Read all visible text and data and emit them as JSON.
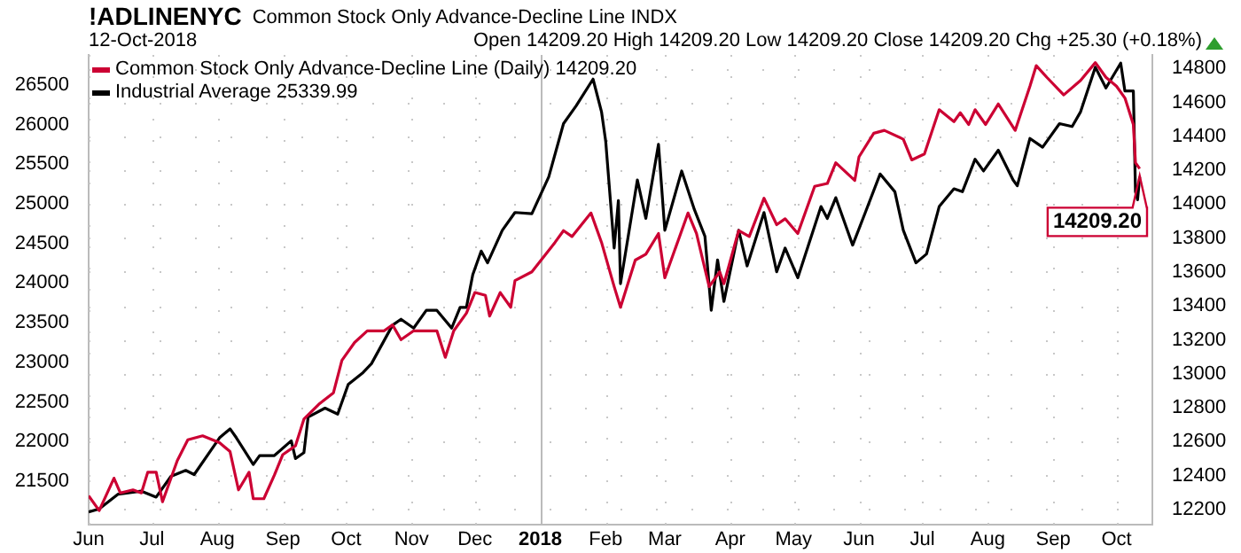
{
  "chart_data": {
    "type": "line",
    "title": "!ADLINENYC",
    "subtitle": "Common Stock Only Advance-Decline Line INDX",
    "annotations": [
      "12-Oct-2018",
      "Open 14209.20  High 14209.20  Low 14209.20  Close 14209.20  Chg +25.30 (+0.18%)",
      "14209.20"
    ],
    "xlim": [
      "2017-06-01",
      "2018-10-18"
    ],
    "xticks": [
      {
        "value": "2017-06-01",
        "label": "Jun"
      },
      {
        "value": "2017-07-01",
        "label": "Jul"
      },
      {
        "value": "2017-08-01",
        "label": "Aug"
      },
      {
        "value": "2017-09-01",
        "label": "Sep"
      },
      {
        "value": "2017-10-01",
        "label": "Oct"
      },
      {
        "value": "2017-11-01",
        "label": "Nov"
      },
      {
        "value": "2017-12-01",
        "label": "Dec"
      },
      {
        "value": "2018-01-01",
        "label": "2018"
      },
      {
        "value": "2018-02-01",
        "label": "Feb"
      },
      {
        "value": "2018-03-01",
        "label": "Mar"
      },
      {
        "value": "2018-04-01",
        "label": "Apr"
      },
      {
        "value": "2018-05-01",
        "label": "May"
      },
      {
        "value": "2018-06-01",
        "label": "Jun"
      },
      {
        "value": "2018-07-01",
        "label": "Jul"
      },
      {
        "value": "2018-08-01",
        "label": "Aug"
      },
      {
        "value": "2018-09-01",
        "label": "Sep"
      },
      {
        "value": "2018-10-01",
        "label": "Oct"
      }
    ],
    "ylim": [
      20950,
      26880
    ],
    "yticks": [
      21500,
      22000,
      22500,
      23000,
      23500,
      24000,
      24500,
      25000,
      25500,
      26000,
      26500
    ],
    "y2lim": [
      12110,
      14880
    ],
    "y2ticks": [
      12200,
      12400,
      12600,
      12800,
      13000,
      13200,
      13400,
      13600,
      13800,
      14000,
      14200,
      14400,
      14600,
      14800
    ],
    "grid": true,
    "legend": "top left",
    "marker": "none",
    "ref_lines": [
      {
        "axis": "x",
        "value": "2018-01-01",
        "color": "#bbbbbb"
      }
    ],
    "series": [
      {
        "name": "Common Stock Only Advance-Decline Line (Daily) 14209.20",
        "color": "#cc0033",
        "axis": "y2",
        "x": [
          "2017-06-01",
          "2017-06-06",
          "2017-06-13",
          "2017-06-16",
          "2017-06-22",
          "2017-06-26",
          "2017-06-29",
          "2017-07-03",
          "2017-07-06",
          "2017-07-13",
          "2017-07-18",
          "2017-07-25",
          "2017-08-02",
          "2017-08-07",
          "2017-08-11",
          "2017-08-16",
          "2017-08-18",
          "2017-08-23",
          "2017-08-28",
          "2017-09-01",
          "2017-09-07",
          "2017-09-11",
          "2017-09-18",
          "2017-09-25",
          "2017-09-29",
          "2017-10-05",
          "2017-10-11",
          "2017-10-19",
          "2017-10-23",
          "2017-10-27",
          "2017-11-02",
          "2017-11-13",
          "2017-11-17",
          "2017-11-21",
          "2017-11-27",
          "2017-12-01",
          "2017-12-06",
          "2017-12-08",
          "2017-12-13",
          "2017-12-18",
          "2017-12-20",
          "2017-12-28",
          "2018-01-08",
          "2018-01-12",
          "2018-01-16",
          "2018-01-25",
          "2018-01-30",
          "2018-02-05",
          "2018-02-08",
          "2018-02-15",
          "2018-02-20",
          "2018-02-26",
          "2018-03-01",
          "2018-03-12",
          "2018-03-16",
          "2018-03-22",
          "2018-03-27",
          "2018-03-29",
          "2018-04-05",
          "2018-04-10",
          "2018-04-17",
          "2018-04-23",
          "2018-04-27",
          "2018-05-03",
          "2018-05-11",
          "2018-05-17",
          "2018-05-21",
          "2018-05-30",
          "2018-06-01",
          "2018-06-08",
          "2018-06-13",
          "2018-06-22",
          "2018-06-26",
          "2018-07-02",
          "2018-07-09",
          "2018-07-16",
          "2018-07-19",
          "2018-07-23",
          "2018-07-26",
          "2018-07-31",
          "2018-08-06",
          "2018-08-14",
          "2018-08-21",
          "2018-08-24",
          "2018-08-29",
          "2018-09-06",
          "2018-09-14",
          "2018-09-21",
          "2018-09-26",
          "2018-10-01",
          "2018-10-05",
          "2018-10-09",
          "2018-10-10",
          "2018-10-12"
        ],
        "values": [
          12280,
          12193,
          12384,
          12297,
          12315,
          12297,
          12419,
          12419,
          12245,
          12488,
          12610,
          12634,
          12593,
          12541,
          12315,
          12419,
          12263,
          12263,
          12402,
          12523,
          12575,
          12732,
          12819,
          12888,
          13079,
          13184,
          13253,
          13253,
          13288,
          13201,
          13253,
          13253,
          13097,
          13253,
          13357,
          13479,
          13462,
          13340,
          13479,
          13392,
          13549,
          13601,
          13775,
          13844,
          13809,
          13948,
          13775,
          13514,
          13392,
          13670,
          13705,
          13827,
          13566,
          13948,
          13827,
          13514,
          13601,
          13531,
          13844,
          13809,
          14035,
          13879,
          13914,
          13827,
          14105,
          14122,
          14244,
          14140,
          14279,
          14418,
          14435,
          14383,
          14261,
          14296,
          14557,
          14487,
          14539,
          14470,
          14557,
          14470,
          14591,
          14435,
          14696,
          14817,
          14748,
          14644,
          14730,
          14835,
          14748,
          14696,
          14626,
          14470,
          14244,
          14209.2
        ]
      },
      {
        "name": "Industrial Average 25339.99",
        "color": "#000000",
        "x": [
          "2017-06-01",
          "2017-06-06",
          "2017-06-15",
          "2017-06-26",
          "2017-07-03",
          "2017-07-10",
          "2017-07-17",
          "2017-07-21",
          "2017-08-02",
          "2017-08-07",
          "2017-08-10",
          "2017-08-18",
          "2017-08-21",
          "2017-08-28",
          "2017-09-05",
          "2017-09-07",
          "2017-09-11",
          "2017-09-13",
          "2017-09-21",
          "2017-09-27",
          "2017-10-02",
          "2017-10-09",
          "2017-10-13",
          "2017-10-23",
          "2017-10-27",
          "2017-11-02",
          "2017-11-08",
          "2017-11-13",
          "2017-11-20",
          "2017-11-24",
          "2017-11-27",
          "2017-11-30",
          "2017-12-04",
          "2017-12-07",
          "2017-12-14",
          "2017-12-20",
          "2017-12-28",
          "2018-01-05",
          "2018-01-12",
          "2018-01-18",
          "2018-01-26",
          "2018-01-30",
          "2018-02-01",
          "2018-02-05",
          "2018-02-07",
          "2018-02-08",
          "2018-02-16",
          "2018-02-20",
          "2018-02-26",
          "2018-03-01",
          "2018-03-09",
          "2018-03-15",
          "2018-03-20",
          "2018-03-23",
          "2018-03-26",
          "2018-03-29",
          "2018-04-05",
          "2018-04-09",
          "2018-04-17",
          "2018-04-23",
          "2018-04-27",
          "2018-05-03",
          "2018-05-14",
          "2018-05-17",
          "2018-05-21",
          "2018-05-29",
          "2018-06-04",
          "2018-06-11",
          "2018-06-18",
          "2018-06-22",
          "2018-06-28",
          "2018-07-03",
          "2018-07-09",
          "2018-07-16",
          "2018-07-20",
          "2018-07-26",
          "2018-07-30",
          "2018-08-06",
          "2018-08-13",
          "2018-08-15",
          "2018-08-21",
          "2018-08-27",
          "2018-09-04",
          "2018-09-10",
          "2018-09-14",
          "2018-09-21",
          "2018-09-26",
          "2018-10-03",
          "2018-10-05",
          "2018-10-09",
          "2018-10-10",
          "2018-10-11",
          "2018-10-12"
        ],
        "values": [
          21111,
          21148,
          21335,
          21373,
          21298,
          21560,
          21635,
          21582,
          22046,
          22159,
          22046,
          21710,
          21822,
          21822,
          22009,
          21784,
          21859,
          22308,
          22421,
          22346,
          22720,
          22870,
          22982,
          23469,
          23543,
          23431,
          23656,
          23656,
          23431,
          23693,
          23693,
          24105,
          24404,
          24255,
          24666,
          24891,
          24876,
          25340,
          26013,
          26238,
          26575,
          26163,
          25789,
          24442,
          25040,
          23993,
          25302,
          24816,
          25752,
          24666,
          25415,
          24928,
          24591,
          23656,
          24292,
          23768,
          24666,
          24217,
          24891,
          24142,
          24442,
          24067,
          24966,
          24816,
          25078,
          24479,
          24891,
          25377,
          25153,
          24666,
          24255,
          24367,
          24966,
          25190,
          25153,
          25564,
          25415,
          25677,
          25302,
          25228,
          25826,
          25715,
          26013,
          25976,
          26163,
          26725,
          26463,
          26777,
          26425,
          26425,
          25153,
          25052,
          25339.99
        ]
      }
    ]
  }
}
